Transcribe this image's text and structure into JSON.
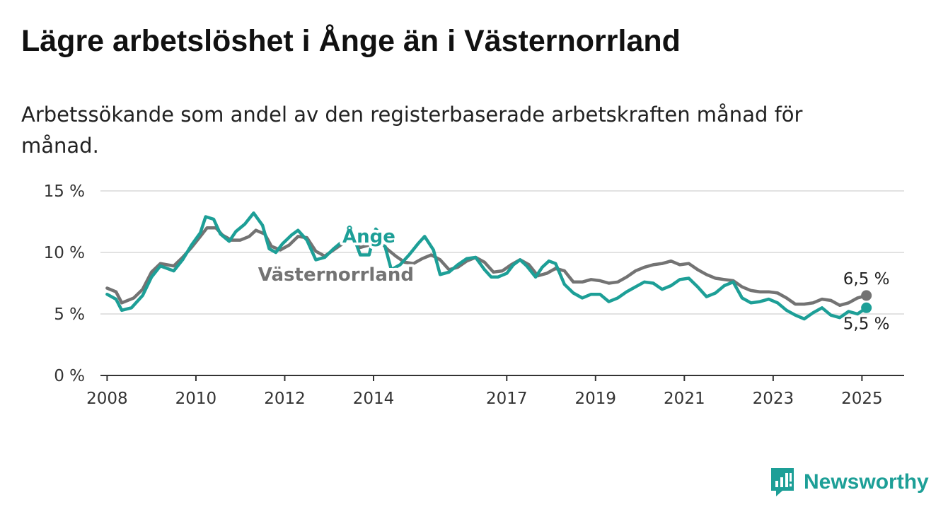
{
  "title": "Lägre arbetslöshet i Ånge än i Västernorrland",
  "subtitle": "Arbetssökande som andel av den registerbaserade arbetskraften månad för månad.",
  "brand": {
    "name": "Newsworthy",
    "icon": "newsworthy-bar-chart-icon",
    "color": "#1d9f97"
  },
  "chart_data": {
    "type": "line",
    "title": "Lägre arbetslöshet i Ånge än i Västernorrland",
    "xlabel": "",
    "ylabel": "",
    "x_range": [
      2007.85,
      2025.95
    ],
    "ylim": [
      0,
      15
    ],
    "y_ticks": [
      0,
      5,
      10,
      15
    ],
    "y_tick_labels": [
      "0 %",
      "5 %",
      "10 %",
      "15 %"
    ],
    "x_ticks": [
      2008,
      2010,
      2012,
      2014,
      2017,
      2019,
      2021,
      2023,
      2025
    ],
    "x_tick_labels": [
      "2008",
      "2010",
      "2012",
      "2014",
      "2017",
      "2019",
      "2021",
      "2023",
      "2025"
    ],
    "grid": true,
    "legend": "inline labels on lines",
    "end_labels": [
      "6,5 %",
      "5,5 %"
    ],
    "series": [
      {
        "name": "Västernorrland",
        "color": "#737373",
        "label_at": [
          2011.4,
          7.7
        ],
        "points": [
          [
            2008.0,
            7.1
          ],
          [
            2008.2,
            6.8
          ],
          [
            2008.33,
            5.9
          ],
          [
            2008.6,
            6.3
          ],
          [
            2008.8,
            7.0
          ],
          [
            2009.0,
            8.4
          ],
          [
            2009.2,
            9.1
          ],
          [
            2009.5,
            8.9
          ],
          [
            2009.7,
            9.6
          ],
          [
            2009.9,
            10.4
          ],
          [
            2010.1,
            11.3
          ],
          [
            2010.25,
            12.0
          ],
          [
            2010.45,
            12.0
          ],
          [
            2010.6,
            11.4
          ],
          [
            2010.8,
            11.0
          ],
          [
            2011.0,
            11.0
          ],
          [
            2011.2,
            11.3
          ],
          [
            2011.35,
            11.8
          ],
          [
            2011.55,
            11.5
          ],
          [
            2011.7,
            10.5
          ],
          [
            2011.9,
            10.2
          ],
          [
            2012.1,
            10.6
          ],
          [
            2012.3,
            11.3
          ],
          [
            2012.5,
            11.2
          ],
          [
            2012.7,
            10.1
          ],
          [
            2012.9,
            9.7
          ],
          [
            2013.1,
            10.2
          ],
          [
            2013.3,
            10.7
          ],
          [
            2013.5,
            11.0
          ],
          [
            2013.7,
            10.4
          ],
          [
            2013.9,
            10.6
          ],
          [
            2014.1,
            11.1
          ],
          [
            2014.3,
            10.3
          ],
          [
            2014.5,
            9.7
          ],
          [
            2014.7,
            9.2
          ],
          [
            2014.9,
            9.1
          ],
          [
            2015.1,
            9.5
          ],
          [
            2015.3,
            9.8
          ],
          [
            2015.5,
            9.4
          ],
          [
            2015.7,
            8.6
          ],
          [
            2015.9,
            8.8
          ],
          [
            2016.1,
            9.3
          ],
          [
            2016.3,
            9.6
          ],
          [
            2016.5,
            9.2
          ],
          [
            2016.7,
            8.4
          ],
          [
            2016.9,
            8.5
          ],
          [
            2017.1,
            9.0
          ],
          [
            2017.3,
            9.4
          ],
          [
            2017.5,
            9.0
          ],
          [
            2017.7,
            8.1
          ],
          [
            2017.9,
            8.3
          ],
          [
            2018.1,
            8.7
          ],
          [
            2018.3,
            8.5
          ],
          [
            2018.5,
            7.6
          ],
          [
            2018.7,
            7.6
          ],
          [
            2018.9,
            7.8
          ],
          [
            2019.1,
            7.7
          ],
          [
            2019.3,
            7.5
          ],
          [
            2019.5,
            7.6
          ],
          [
            2019.7,
            8.0
          ],
          [
            2019.9,
            8.5
          ],
          [
            2020.1,
            8.8
          ],
          [
            2020.3,
            9.0
          ],
          [
            2020.5,
            9.1
          ],
          [
            2020.7,
            9.3
          ],
          [
            2020.9,
            9.0
          ],
          [
            2021.1,
            9.1
          ],
          [
            2021.3,
            8.6
          ],
          [
            2021.5,
            8.2
          ],
          [
            2021.7,
            7.9
          ],
          [
            2021.9,
            7.8
          ],
          [
            2022.1,
            7.7
          ],
          [
            2022.3,
            7.2
          ],
          [
            2022.5,
            6.9
          ],
          [
            2022.7,
            6.8
          ],
          [
            2022.9,
            6.8
          ],
          [
            2023.1,
            6.7
          ],
          [
            2023.3,
            6.3
          ],
          [
            2023.5,
            5.8
          ],
          [
            2023.7,
            5.8
          ],
          [
            2023.9,
            5.9
          ],
          [
            2024.1,
            6.2
          ],
          [
            2024.3,
            6.1
          ],
          [
            2024.5,
            5.7
          ],
          [
            2024.7,
            5.9
          ],
          [
            2024.9,
            6.3
          ],
          [
            2025.1,
            6.5
          ]
        ]
      },
      {
        "name": "Ånge",
        "color": "#1d9f97",
        "label_at": [
          2013.3,
          10.8
        ],
        "points": [
          [
            2008.0,
            6.6
          ],
          [
            2008.2,
            6.2
          ],
          [
            2008.33,
            5.3
          ],
          [
            2008.55,
            5.5
          ],
          [
            2008.8,
            6.5
          ],
          [
            2009.0,
            8.0
          ],
          [
            2009.2,
            8.9
          ],
          [
            2009.5,
            8.5
          ],
          [
            2009.7,
            9.4
          ],
          [
            2009.9,
            10.6
          ],
          [
            2010.1,
            11.6
          ],
          [
            2010.22,
            12.9
          ],
          [
            2010.4,
            12.7
          ],
          [
            2010.55,
            11.5
          ],
          [
            2010.75,
            10.9
          ],
          [
            2010.9,
            11.7
          ],
          [
            2011.1,
            12.3
          ],
          [
            2011.3,
            13.2
          ],
          [
            2011.5,
            12.2
          ],
          [
            2011.65,
            10.3
          ],
          [
            2011.8,
            10.0
          ],
          [
            2011.95,
            10.7
          ],
          [
            2012.15,
            11.4
          ],
          [
            2012.3,
            11.8
          ],
          [
            2012.5,
            11.0
          ],
          [
            2012.7,
            9.4
          ],
          [
            2012.9,
            9.6
          ],
          [
            2013.1,
            10.3
          ],
          [
            2013.3,
            10.9
          ],
          [
            2013.5,
            11.8
          ],
          [
            2013.7,
            9.8
          ],
          [
            2013.9,
            9.8
          ],
          [
            2014.05,
            11.9
          ],
          [
            2014.2,
            11.3
          ],
          [
            2014.4,
            8.6
          ],
          [
            2014.6,
            9.0
          ],
          [
            2014.8,
            9.8
          ],
          [
            2015.0,
            10.7
          ],
          [
            2015.15,
            11.3
          ],
          [
            2015.35,
            10.2
          ],
          [
            2015.5,
            8.2
          ],
          [
            2015.7,
            8.4
          ],
          [
            2015.9,
            9.0
          ],
          [
            2016.1,
            9.5
          ],
          [
            2016.3,
            9.6
          ],
          [
            2016.5,
            8.6
          ],
          [
            2016.65,
            8.0
          ],
          [
            2016.8,
            8.0
          ],
          [
            2017.0,
            8.3
          ],
          [
            2017.15,
            9.0
          ],
          [
            2017.3,
            9.4
          ],
          [
            2017.45,
            8.9
          ],
          [
            2017.65,
            8.0
          ],
          [
            2017.8,
            8.8
          ],
          [
            2017.95,
            9.3
          ],
          [
            2018.1,
            9.1
          ],
          [
            2018.3,
            7.4
          ],
          [
            2018.5,
            6.7
          ],
          [
            2018.7,
            6.3
          ],
          [
            2018.9,
            6.6
          ],
          [
            2019.1,
            6.6
          ],
          [
            2019.3,
            6.0
          ],
          [
            2019.5,
            6.3
          ],
          [
            2019.7,
            6.8
          ],
          [
            2019.9,
            7.2
          ],
          [
            2020.1,
            7.6
          ],
          [
            2020.3,
            7.5
          ],
          [
            2020.5,
            7.0
          ],
          [
            2020.7,
            7.3
          ],
          [
            2020.9,
            7.8
          ],
          [
            2021.1,
            7.9
          ],
          [
            2021.3,
            7.2
          ],
          [
            2021.5,
            6.4
          ],
          [
            2021.7,
            6.7
          ],
          [
            2021.9,
            7.3
          ],
          [
            2022.1,
            7.6
          ],
          [
            2022.3,
            6.3
          ],
          [
            2022.5,
            5.9
          ],
          [
            2022.7,
            6.0
          ],
          [
            2022.9,
            6.2
          ],
          [
            2023.1,
            5.9
          ],
          [
            2023.3,
            5.3
          ],
          [
            2023.5,
            4.9
          ],
          [
            2023.7,
            4.6
          ],
          [
            2023.9,
            5.1
          ],
          [
            2024.1,
            5.5
          ],
          [
            2024.3,
            4.9
          ],
          [
            2024.5,
            4.7
          ],
          [
            2024.7,
            5.2
          ],
          [
            2024.9,
            5.0
          ],
          [
            2025.1,
            5.5
          ]
        ]
      }
    ]
  }
}
